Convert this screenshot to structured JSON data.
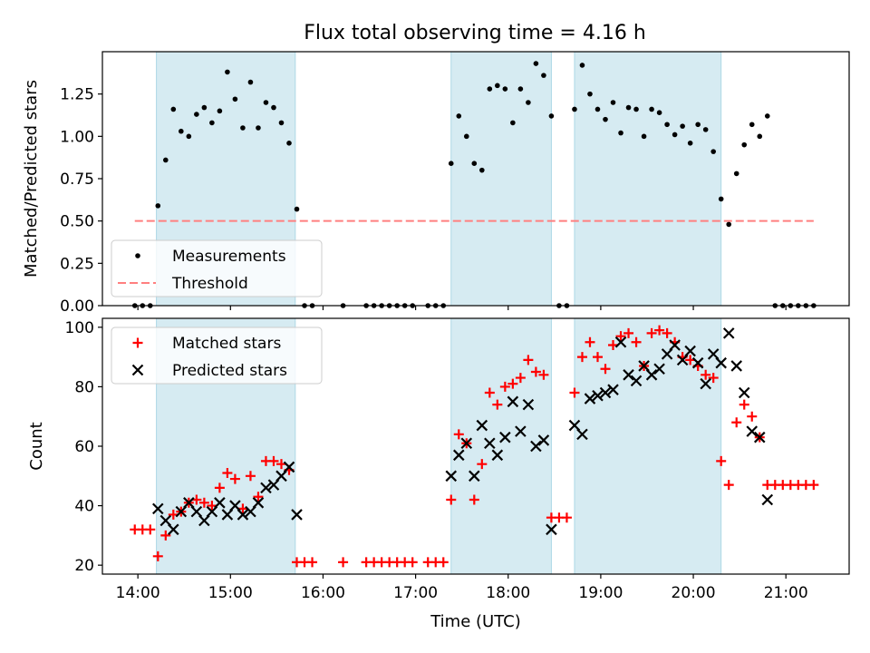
{
  "figure_title": "Flux total observing time = 4.16 h",
  "chart_data": [
    {
      "type": "scatter",
      "panel": "top",
      "ylabel": "Matched/Predicted stars",
      "xlabel": "",
      "ylim": [
        0,
        1.5
      ],
      "xlim": [
        "13:37",
        "21:41"
      ],
      "grid": false,
      "y_ticks": [
        "0.00",
        "0.25",
        "0.50",
        "0.75",
        "1.00",
        "1.25"
      ],
      "shaded_intervals": [
        [
          "14:12",
          "15:42"
        ],
        [
          "17:23",
          "18:28"
        ],
        [
          "18:43",
          "20:18"
        ]
      ],
      "legend_placement": "lower left",
      "series": [
        {
          "name": "Measurements",
          "marker": "dot",
          "color": "#000000",
          "points": [
            [
              "13:58",
              0
            ],
            [
              "14:03",
              0
            ],
            [
              "14:08",
              0
            ],
            [
              "14:13",
              0.59
            ],
            [
              "14:18",
              0.86
            ],
            [
              "14:23",
              1.16
            ],
            [
              "14:28",
              1.03
            ],
            [
              "14:33",
              1.0
            ],
            [
              "14:38",
              1.13
            ],
            [
              "14:43",
              1.17
            ],
            [
              "14:48",
              1.08
            ],
            [
              "14:53",
              1.15
            ],
            [
              "14:58",
              1.38
            ],
            [
              "15:03",
              1.22
            ],
            [
              "15:08",
              1.05
            ],
            [
              "15:13",
              1.32
            ],
            [
              "15:18",
              1.05
            ],
            [
              "15:23",
              1.2
            ],
            [
              "15:28",
              1.17
            ],
            [
              "15:33",
              1.08
            ],
            [
              "15:38",
              0.96
            ],
            [
              "15:43",
              0.57
            ],
            [
              "15:48",
              0
            ],
            [
              "15:53",
              0
            ],
            [
              "16:13",
              0
            ],
            [
              "16:28",
              0
            ],
            [
              "16:33",
              0
            ],
            [
              "16:38",
              0
            ],
            [
              "16:43",
              0
            ],
            [
              "16:48",
              0
            ],
            [
              "16:53",
              0
            ],
            [
              "16:58",
              0
            ],
            [
              "17:08",
              0
            ],
            [
              "17:13",
              0
            ],
            [
              "17:18",
              0
            ],
            [
              "17:23",
              0.84
            ],
            [
              "17:28",
              1.12
            ],
            [
              "17:33",
              1.0
            ],
            [
              "17:38",
              0.84
            ],
            [
              "17:43",
              0.8
            ],
            [
              "17:48",
              1.28
            ],
            [
              "17:53",
              1.3
            ],
            [
              "17:58",
              1.28
            ],
            [
              "18:03",
              1.08
            ],
            [
              "18:08",
              1.28
            ],
            [
              "18:13",
              1.2
            ],
            [
              "18:18",
              1.43
            ],
            [
              "18:23",
              1.36
            ],
            [
              "18:28",
              1.12
            ],
            [
              "18:33",
              0
            ],
            [
              "18:38",
              0
            ],
            [
              "18:43",
              1.16
            ],
            [
              "18:48",
              1.42
            ],
            [
              "18:53",
              1.25
            ],
            [
              "18:58",
              1.16
            ],
            [
              "19:03",
              1.1
            ],
            [
              "19:08",
              1.2
            ],
            [
              "19:13",
              1.02
            ],
            [
              "19:18",
              1.17
            ],
            [
              "19:23",
              1.16
            ],
            [
              "19:28",
              1.0
            ],
            [
              "19:33",
              1.16
            ],
            [
              "19:38",
              1.14
            ],
            [
              "19:43",
              1.07
            ],
            [
              "19:48",
              1.01
            ],
            [
              "19:53",
              1.06
            ],
            [
              "19:58",
              0.96
            ],
            [
              "20:03",
              1.07
            ],
            [
              "20:08",
              1.04
            ],
            [
              "20:13",
              0.91
            ],
            [
              "20:18",
              0.63
            ],
            [
              "20:23",
              0.48
            ],
            [
              "20:28",
              0.78
            ],
            [
              "20:33",
              0.95
            ],
            [
              "20:38",
              1.07
            ],
            [
              "20:43",
              1.0
            ],
            [
              "20:48",
              1.12
            ],
            [
              "20:53",
              0
            ],
            [
              "20:58",
              0
            ],
            [
              "21:03",
              0
            ],
            [
              "21:08",
              0
            ],
            [
              "21:13",
              0
            ],
            [
              "21:18",
              0
            ]
          ]
        },
        {
          "name": "Threshold",
          "marker": "dashed-line",
          "color": "#ff7f7f",
          "points": [
            [
              "13:58",
              0.5
            ],
            [
              "21:18",
              0.5
            ]
          ]
        }
      ]
    },
    {
      "type": "scatter",
      "panel": "bottom",
      "ylabel": "Count",
      "xlabel": "Time (UTC)",
      "ylim": [
        17,
        103
      ],
      "xlim": [
        "13:37",
        "21:41"
      ],
      "grid": false,
      "y_ticks": [
        "20",
        "40",
        "60",
        "80",
        "100"
      ],
      "x_ticks": [
        "14:00",
        "15:00",
        "16:00",
        "17:00",
        "18:00",
        "19:00",
        "20:00",
        "21:00"
      ],
      "shaded_intervals": [
        [
          "14:12",
          "15:42"
        ],
        [
          "17:23",
          "18:28"
        ],
        [
          "18:43",
          "20:18"
        ]
      ],
      "legend_placement": "upper left",
      "series": [
        {
          "name": "Matched stars",
          "marker": "plus",
          "color": "#ff0000",
          "points": [
            [
              "13:58",
              32
            ],
            [
              "14:03",
              32
            ],
            [
              "14:08",
              32
            ],
            [
              "14:13",
              23
            ],
            [
              "14:18",
              30
            ],
            [
              "14:23",
              37
            ],
            [
              "14:28",
              38
            ],
            [
              "14:33",
              41
            ],
            [
              "14:38",
              42
            ],
            [
              "14:43",
              41
            ],
            [
              "14:48",
              40
            ],
            [
              "14:53",
              46
            ],
            [
              "14:58",
              51
            ],
            [
              "15:03",
              49
            ],
            [
              "15:08",
              39
            ],
            [
              "15:13",
              50
            ],
            [
              "15:18",
              43
            ],
            [
              "15:23",
              55
            ],
            [
              "15:28",
              55
            ],
            [
              "15:33",
              54
            ],
            [
              "15:38",
              52
            ],
            [
              "15:43",
              21
            ],
            [
              "15:48",
              21
            ],
            [
              "15:53",
              21
            ],
            [
              "16:13",
              21
            ],
            [
              "16:28",
              21
            ],
            [
              "16:33",
              21
            ],
            [
              "16:38",
              21
            ],
            [
              "16:43",
              21
            ],
            [
              "16:48",
              21
            ],
            [
              "16:53",
              21
            ],
            [
              "16:58",
              21
            ],
            [
              "17:08",
              21
            ],
            [
              "17:13",
              21
            ],
            [
              "17:18",
              21
            ],
            [
              "17:23",
              42
            ],
            [
              "17:28",
              64
            ],
            [
              "17:33",
              61
            ],
            [
              "17:38",
              42
            ],
            [
              "17:43",
              54
            ],
            [
              "17:48",
              78
            ],
            [
              "17:53",
              74
            ],
            [
              "17:58",
              80
            ],
            [
              "18:03",
              81
            ],
            [
              "18:08",
              83
            ],
            [
              "18:13",
              89
            ],
            [
              "18:18",
              85
            ],
            [
              "18:23",
              84
            ],
            [
              "18:28",
              36
            ],
            [
              "18:33",
              36
            ],
            [
              "18:38",
              36
            ],
            [
              "18:43",
              78
            ],
            [
              "18:48",
              90
            ],
            [
              "18:53",
              95
            ],
            [
              "18:58",
              90
            ],
            [
              "19:03",
              86
            ],
            [
              "19:08",
              94
            ],
            [
              "19:13",
              97
            ],
            [
              "19:18",
              98
            ],
            [
              "19:23",
              95
            ],
            [
              "19:28",
              87
            ],
            [
              "19:33",
              98
            ],
            [
              "19:38",
              99
            ],
            [
              "19:43",
              98
            ],
            [
              "19:48",
              95
            ],
            [
              "19:53",
              90
            ],
            [
              "19:58",
              89
            ],
            [
              "20:03",
              87
            ],
            [
              "20:08",
              84
            ],
            [
              "20:13",
              83
            ],
            [
              "20:18",
              55
            ],
            [
              "20:23",
              47
            ],
            [
              "20:28",
              68
            ],
            [
              "20:33",
              74
            ],
            [
              "20:38",
              70
            ],
            [
              "20:43",
              63
            ],
            [
              "20:48",
              47
            ],
            [
              "20:53",
              47
            ],
            [
              "20:58",
              47
            ],
            [
              "21:03",
              47
            ],
            [
              "21:08",
              47
            ],
            [
              "21:13",
              47
            ],
            [
              "21:18",
              47
            ]
          ]
        },
        {
          "name": "Predicted stars",
          "marker": "x",
          "color": "#000000",
          "points": [
            [
              "14:13",
              39
            ],
            [
              "14:18",
              35
            ],
            [
              "14:23",
              32
            ],
            [
              "14:28",
              38
            ],
            [
              "14:33",
              41
            ],
            [
              "14:38",
              38
            ],
            [
              "14:43",
              35
            ],
            [
              "14:48",
              38
            ],
            [
              "14:53",
              41
            ],
            [
              "14:58",
              37
            ],
            [
              "15:03",
              40
            ],
            [
              "15:08",
              37
            ],
            [
              "15:13",
              38
            ],
            [
              "15:18",
              41
            ],
            [
              "15:23",
              46
            ],
            [
              "15:28",
              47
            ],
            [
              "15:33",
              50
            ],
            [
              "15:38",
              53
            ],
            [
              "15:43",
              37
            ],
            [
              "17:23",
              50
            ],
            [
              "17:28",
              57
            ],
            [
              "17:33",
              61
            ],
            [
              "17:38",
              50
            ],
            [
              "17:43",
              67
            ],
            [
              "17:48",
              61
            ],
            [
              "17:53",
              57
            ],
            [
              "17:58",
              63
            ],
            [
              "18:03",
              75
            ],
            [
              "18:08",
              65
            ],
            [
              "18:13",
              74
            ],
            [
              "18:18",
              60
            ],
            [
              "18:23",
              62
            ],
            [
              "18:28",
              32
            ],
            [
              "18:43",
              67
            ],
            [
              "18:48",
              64
            ],
            [
              "18:53",
              76
            ],
            [
              "18:58",
              77
            ],
            [
              "19:03",
              78
            ],
            [
              "19:08",
              79
            ],
            [
              "19:13",
              95
            ],
            [
              "19:18",
              84
            ],
            [
              "19:23",
              82
            ],
            [
              "19:28",
              87
            ],
            [
              "19:33",
              84
            ],
            [
              "19:38",
              86
            ],
            [
              "19:43",
              91
            ],
            [
              "19:48",
              94
            ],
            [
              "19:53",
              89
            ],
            [
              "19:58",
              92
            ],
            [
              "20:03",
              88
            ],
            [
              "20:08",
              81
            ],
            [
              "20:13",
              91
            ],
            [
              "20:18",
              88
            ],
            [
              "20:23",
              98
            ],
            [
              "20:28",
              87
            ],
            [
              "20:33",
              78
            ],
            [
              "20:38",
              65
            ],
            [
              "20:43",
              63
            ],
            [
              "20:48",
              42
            ]
          ]
        }
      ]
    }
  ],
  "colors": {
    "shade": "#add8e6",
    "axes": "#000000"
  }
}
